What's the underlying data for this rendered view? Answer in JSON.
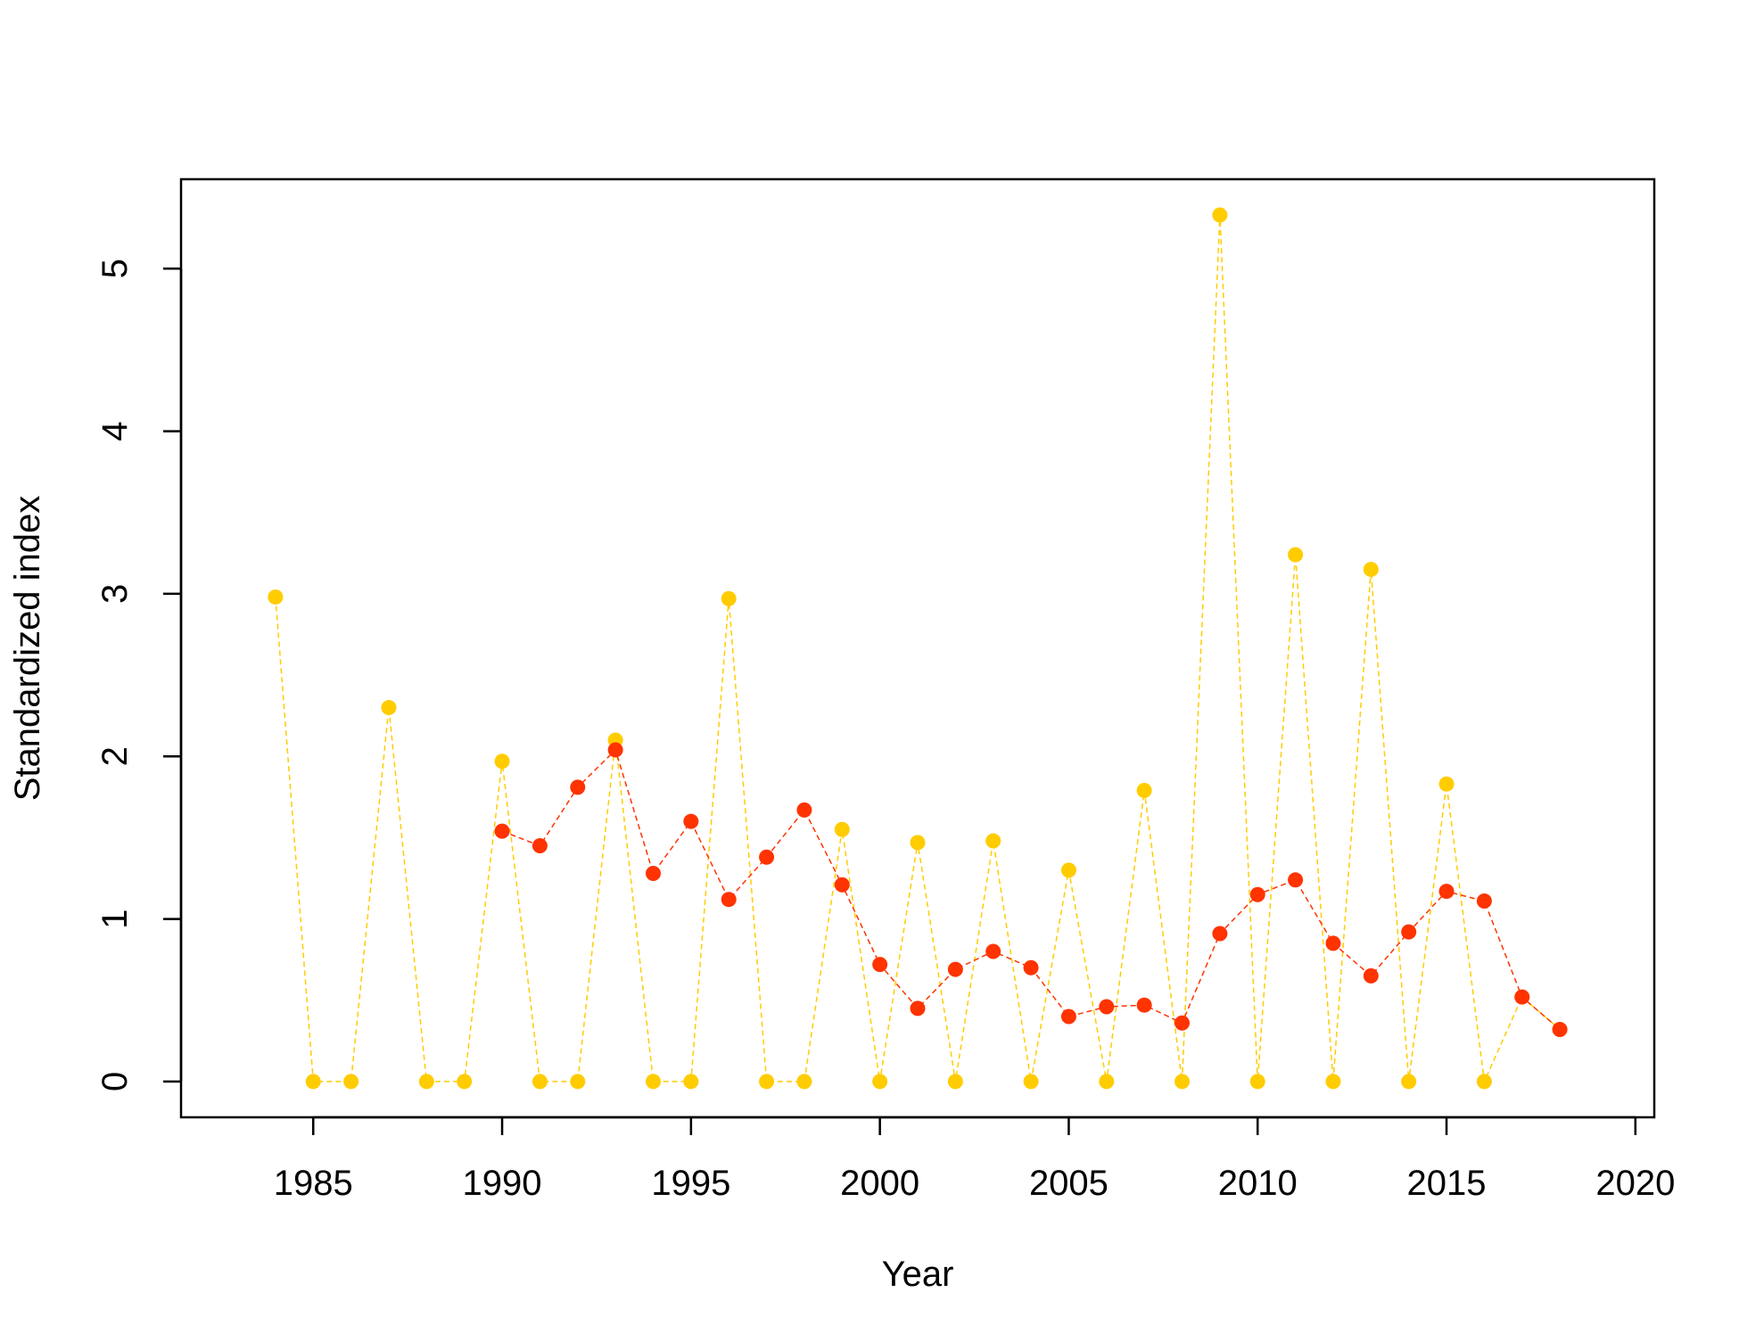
{
  "chart_data": {
    "type": "line",
    "title": "",
    "xlabel": "Year",
    "ylabel": "Standardized index",
    "xlim": [
      1981.5,
      2020.5
    ],
    "ylim": [
      -0.22,
      5.55
    ],
    "xticks": [
      1985,
      1990,
      1995,
      2000,
      2005,
      2010,
      2015,
      2020
    ],
    "yticks": [
      0,
      1,
      2,
      3,
      4,
      5
    ],
    "grid": false,
    "legend": "none",
    "series": [
      {
        "color": "#FFCC00",
        "line_style": "dashed",
        "points": [
          [
            1984,
            2.98
          ],
          [
            1985,
            0
          ],
          [
            1986,
            0
          ],
          [
            1987,
            2.3
          ],
          [
            1988,
            0
          ],
          [
            1989,
            0
          ],
          [
            1990,
            1.97
          ],
          [
            1991,
            0
          ],
          [
            1992,
            0
          ],
          [
            1993,
            2.1
          ],
          [
            1994,
            0
          ],
          [
            1995,
            0
          ],
          [
            1996,
            2.97
          ],
          [
            1997,
            0
          ],
          [
            1998,
            0
          ],
          [
            1999,
            1.55
          ],
          [
            2000,
            0
          ],
          [
            2001,
            1.47
          ],
          [
            2002,
            0
          ],
          [
            2003,
            1.48
          ],
          [
            2004,
            0
          ],
          [
            2005,
            1.3
          ],
          [
            2006,
            0
          ],
          [
            2007,
            1.79
          ],
          [
            2008,
            0
          ],
          [
            2009,
            5.33
          ],
          [
            2010,
            0
          ],
          [
            2011,
            3.24
          ],
          [
            2012,
            0
          ],
          [
            2013,
            3.15
          ],
          [
            2014,
            0
          ],
          [
            2015,
            1.83
          ],
          [
            2016,
            0
          ],
          [
            2017,
            0.52
          ],
          [
            2018,
            0.32
          ]
        ]
      },
      {
        "color": "#FF3300",
        "line_style": "dashed",
        "points": [
          [
            1990,
            1.54
          ],
          [
            1991,
            1.45
          ],
          [
            1992,
            1.81
          ],
          [
            1993,
            2.04
          ],
          [
            1994,
            1.28
          ],
          [
            1995,
            1.6
          ],
          [
            1996,
            1.12
          ],
          [
            1997,
            1.38
          ],
          [
            1998,
            1.67
          ],
          [
            1999,
            1.21
          ],
          [
            2000,
            0.72
          ],
          [
            2001,
            0.45
          ],
          [
            2002,
            0.69
          ],
          [
            2003,
            0.8
          ],
          [
            2004,
            0.7
          ],
          [
            2005,
            0.4
          ],
          [
            2006,
            0.46
          ],
          [
            2007,
            0.47
          ],
          [
            2008,
            0.36
          ],
          [
            2009,
            0.91
          ],
          [
            2010,
            1.15
          ],
          [
            2011,
            1.24
          ],
          [
            2012,
            0.85
          ],
          [
            2013,
            0.65
          ],
          [
            2014,
            0.92
          ],
          [
            2015,
            1.17
          ],
          [
            2016,
            1.11
          ],
          [
            2017,
            0.52
          ],
          [
            2018,
            0.32
          ]
        ]
      }
    ]
  }
}
